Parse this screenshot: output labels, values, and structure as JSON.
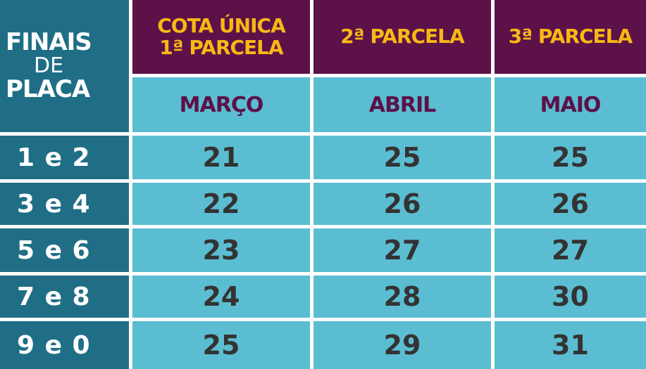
{
  "corner": {
    "line1": "FINAIS",
    "line2": "DE",
    "line3": "PLACA"
  },
  "headers": [
    {
      "line1": "COTA ÚNICA",
      "line2": "1ª PARCELA"
    },
    {
      "line1": "2ª PARCELA",
      "line2": ""
    },
    {
      "line1": "3ª PARCELA",
      "line2": ""
    }
  ],
  "months": [
    "MARÇO",
    "ABRIL",
    "MAIO"
  ],
  "rows": [
    {
      "plate": "1 e 2",
      "days": [
        "21",
        "25",
        "25"
      ]
    },
    {
      "plate": "3 e 4",
      "days": [
        "22",
        "26",
        "26"
      ]
    },
    {
      "plate": "5 e 6",
      "days": [
        "23",
        "27",
        "27"
      ]
    },
    {
      "plate": "7 e 8",
      "days": [
        "24",
        "28",
        "30"
      ]
    },
    {
      "plate": "9 e 0",
      "days": [
        "25",
        "29",
        "31"
      ]
    }
  ],
  "colors": {
    "purple": "#5c1149",
    "yellow": "#f7b815",
    "light_blue": "#5bbdd1",
    "dark_teal": "#1f6e86",
    "text": "#333333"
  }
}
